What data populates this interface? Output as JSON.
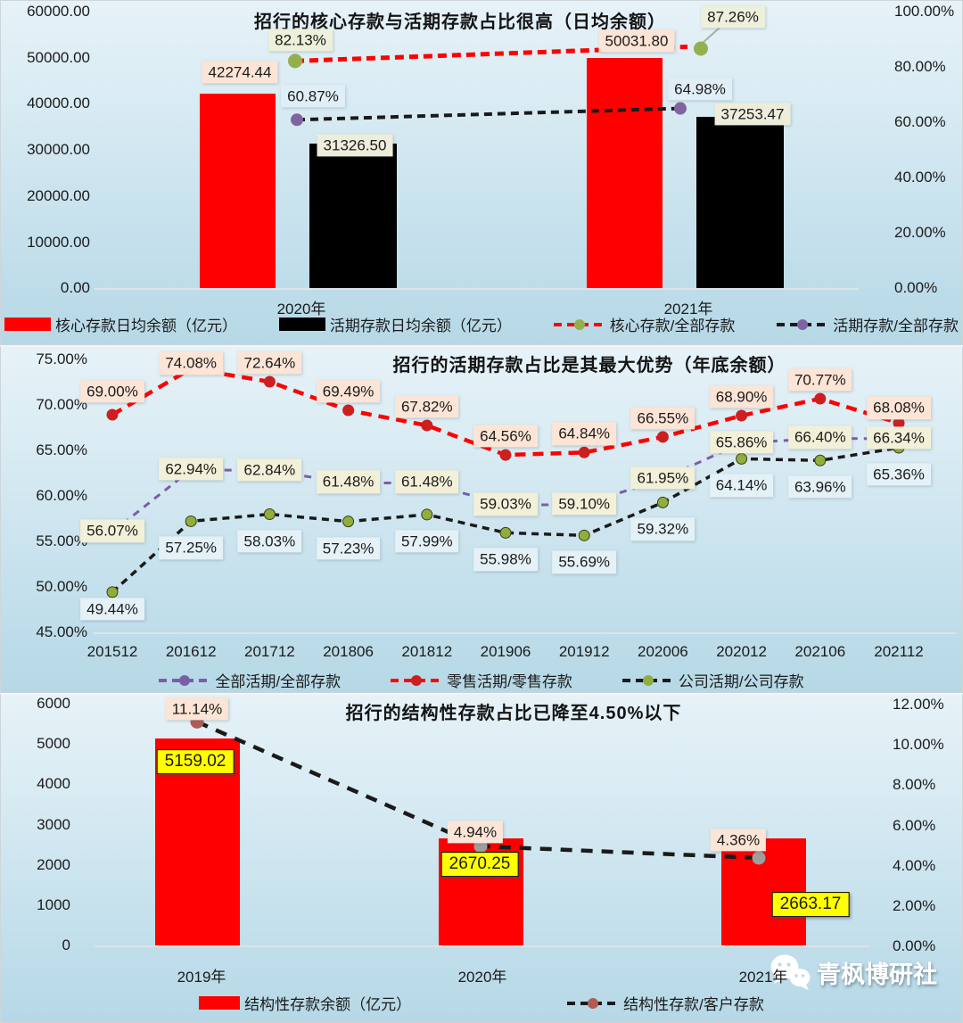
{
  "watermark": {
    "text": "青枫博研社",
    "icon": "wechat-icon"
  },
  "chart_data": [
    {
      "type": "bar+line",
      "title": "招行的核心存款与活期存款占比很高（日均余额）",
      "categories": [
        "2020年",
        "2021年"
      ],
      "left_axis": {
        "min": 0,
        "max": 60000,
        "ticks": [
          "60000.00",
          "50000.00",
          "40000.00",
          "30000.00",
          "20000.00",
          "10000.00",
          "0.00"
        ]
      },
      "right_axis": {
        "min": 0,
        "max": 100,
        "ticks": [
          "100.00%",
          "80.00%",
          "60.00%",
          "40.00%",
          "20.00%",
          "0.00%"
        ]
      },
      "grid": false,
      "legend_position": "bottom",
      "series": [
        {
          "name": "核心存款日均余额（亿元）",
          "kind": "bar",
          "color": "#ff0000",
          "values": [
            42274.44,
            50031.8
          ],
          "labels": [
            "42274.44",
            "50031.80"
          ],
          "label_bg": "#fce5d6"
        },
        {
          "name": "活期存款日均余额（亿元）",
          "kind": "bar",
          "color": "#000000",
          "values": [
            31326.5,
            37253.47
          ],
          "labels": [
            "31326.50",
            "37253.47"
          ],
          "label_bg": "#eeeddb"
        },
        {
          "name": "核心存款/全部存款",
          "kind": "line",
          "line_color": "#fe0000",
          "marker_color": "#94b04e",
          "values": [
            82.13,
            87.26
          ],
          "labels": [
            "82.13%",
            "87.26%"
          ],
          "label_bg": "#edf0da"
        },
        {
          "name": "活期存款/全部存款",
          "kind": "line",
          "line_color": "#1a1a1a",
          "marker_color": "#8064a2",
          "values": [
            60.87,
            64.98
          ],
          "labels": [
            "60.87%",
            "64.98%"
          ],
          "label_bg": "#e0eff7"
        }
      ]
    },
    {
      "type": "line",
      "title": "招行的活期存款占比是其最大优势（年底余额）",
      "categories": [
        "201512",
        "201612",
        "201712",
        "201806",
        "201812",
        "201906",
        "201912",
        "202006",
        "202012",
        "202106",
        "202112"
      ],
      "left_axis": {
        "min": 45,
        "max": 75,
        "ticks": [
          "75.00%",
          "70.00%",
          "65.00%",
          "60.00%",
          "55.00%",
          "50.00%",
          "45.00%"
        ]
      },
      "grid": false,
      "legend_position": "bottom",
      "series": [
        {
          "name": "全部活期/全部存款",
          "kind": "line",
          "line_color": "#7b5ea7",
          "marker_color": "#7b5ea7",
          "label_bg": "#f2f0d8",
          "values": [
            56.07,
            62.94,
            62.84,
            61.48,
            61.48,
            59.03,
            59.1,
            61.95,
            65.86,
            66.4,
            66.34
          ],
          "labels": [
            "56.07%",
            "62.94%",
            "62.84%",
            "61.48%",
            "61.48%",
            "59.03%",
            "59.10%",
            "61.95%",
            "65.86%",
            "66.40%",
            "66.34%"
          ]
        },
        {
          "name": "零售活期/零售存款",
          "kind": "line",
          "line_color": "#fe0000",
          "marker_color": "#cc2020",
          "label_bg": "#fce5d6",
          "values": [
            69.0,
            74.08,
            72.64,
            69.49,
            67.82,
            64.56,
            64.84,
            66.55,
            68.9,
            70.77,
            68.08
          ],
          "labels": [
            "69.00%",
            "74.08%",
            "72.64%",
            "69.49%",
            "67.82%",
            "64.56%",
            "64.84%",
            "66.55%",
            "68.90%",
            "70.77%",
            "68.08%"
          ]
        },
        {
          "name": "公司活期/公司存款",
          "kind": "line",
          "line_color": "#1a1a1a",
          "marker_color": "#8fae3e",
          "label_bg": "#e4f1f7",
          "values": [
            49.44,
            57.25,
            58.03,
            57.23,
            57.99,
            55.98,
            55.69,
            59.32,
            64.14,
            63.96,
            65.36
          ],
          "labels": [
            "49.44%",
            "57.25%",
            "58.03%",
            "57.23%",
            "57.99%",
            "55.98%",
            "55.69%",
            "59.32%",
            "64.14%",
            "63.96%",
            "65.36%"
          ]
        }
      ]
    },
    {
      "type": "bar+line",
      "title": "招行的结构性存款占比已降至4.50%以下",
      "categories": [
        "2019年",
        "2020年",
        "2021年"
      ],
      "left_axis": {
        "min": 0,
        "max": 6000,
        "ticks": [
          "6000",
          "5000",
          "4000",
          "3000",
          "2000",
          "1000",
          "0"
        ]
      },
      "right_axis": {
        "min": 0,
        "max": 12,
        "ticks": [
          "12.00%",
          "10.00%",
          "8.00%",
          "6.00%",
          "4.00%",
          "2.00%",
          "0.00%"
        ]
      },
      "grid": false,
      "legend_position": "bottom",
      "series": [
        {
          "name": "结构性存款余额（亿元）",
          "kind": "bar",
          "color": "#ff0000",
          "values": [
            5159.02,
            2670.25,
            2663.17
          ],
          "labels": [
            "5159.02",
            "2670.25",
            "2663.17"
          ],
          "label_bg": "#ffff00"
        },
        {
          "name": "结构性存款/客户存款",
          "kind": "line",
          "line_color": "#1a1a1a",
          "marker_color": "#b25b56",
          "marker_colors": [
            "#b25b56",
            "#9e9e9e",
            "#9e9e9e"
          ],
          "values": [
            11.14,
            4.94,
            4.36
          ],
          "labels": [
            "11.14%",
            "4.94%",
            "4.36%"
          ],
          "label_bg": "#fce5d6"
        }
      ]
    }
  ]
}
